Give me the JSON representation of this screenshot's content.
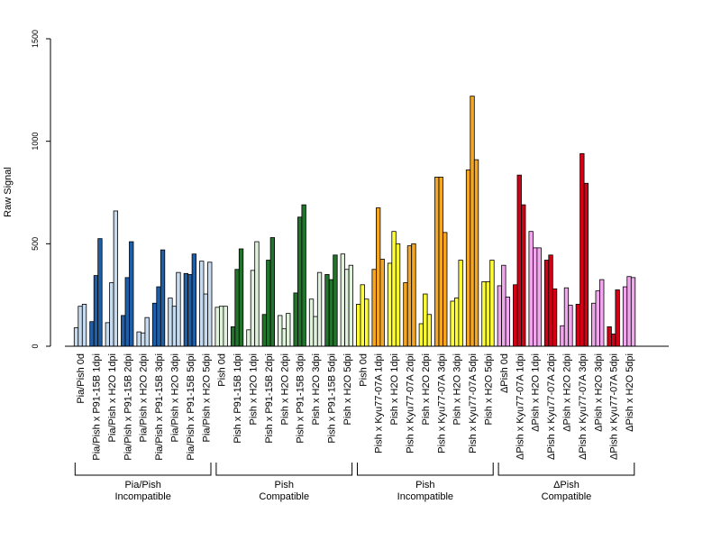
{
  "chart_data": {
    "type": "bar",
    "ylabel": "Raw Signal",
    "ylim": [
      0,
      1500
    ],
    "yticks": [
      0,
      500,
      1000,
      1500
    ],
    "grid": false,
    "categories": [
      "Pia/Pish 0d",
      "Pia/Pish x P91-15B 1dpi",
      "Pia/Pish x H2O 1dpi",
      "Pia/Pish x P91-15B 2dpi",
      "Pia/Pish x H2O 2dpi",
      "Pia/Pish x P91-15B 3dpi",
      "Pia/Pish x H2O 3dpi",
      "Pia/Pish x P91-15B 5dpi",
      "Pia/Pish x H2O 5dpi",
      "Pish 0d",
      "Pish x P91-15B 1dpi",
      "Pish x H2O 1dpi",
      "Pish x P91-15B 2dpi",
      "Pish x H2O 2dpi",
      "Pish x P91-15B 3dpi",
      "Pish x H2O 3dpi",
      "Pish x P91-15B 5dpi",
      "Pish x H2O 5dpi",
      "Pish 0d",
      "Pish x Kyu77-07A 1dpi",
      "Pish x H2O 1dpi",
      "Pish x Kyu77-07A 2dpi",
      "Pish x H2O 2dpi",
      "Pish x Kyu77-07A 3dpi",
      "Pish x H2O 3dpi",
      "Pish x Kyu77-07A 5dpi",
      "Pish x H2O 5dpi",
      "ΔPish 0d",
      "ΔPish x Kyu77-07A 1dpi",
      "ΔPish x H2O 1dpi",
      "ΔPish x Kyu77-07A 2dpi",
      "ΔPish x H2O 2dpi",
      "ΔPish x Kyu77-07A 3dpi",
      "ΔPish x H2O 3dpi",
      "ΔPish x Kyu77-07A 5dpi",
      "ΔPish x H2O 5dpi"
    ],
    "colors": [
      "#c6dbef",
      "#1f5fa8",
      "#c6dbef",
      "#1f5fa8",
      "#c6dbef",
      "#1f5fa8",
      "#c6dbef",
      "#1f5fa8",
      "#c6dbef",
      "#e1f2dc",
      "#22742c",
      "#e1f2dc",
      "#22742c",
      "#e1f2dc",
      "#22742c",
      "#e1f2dc",
      "#22742c",
      "#e1f2dc",
      "#ffff33",
      "#f5a623",
      "#ffff33",
      "#f5a623",
      "#ffff33",
      "#f5a623",
      "#ffff33",
      "#f5a623",
      "#ffff33",
      "#f2a6ee",
      "#d40015",
      "#f2a6ee",
      "#d40015",
      "#f2a6ee",
      "#d40015",
      "#f2a6ee",
      "#d40015",
      "#f2a6ee"
    ],
    "values": [
      [
        90,
        195,
        205
      ],
      [
        120,
        345,
        525
      ],
      [
        115,
        310,
        660
      ],
      [
        150,
        335,
        510
      ],
      [
        70,
        65,
        140
      ],
      [
        210,
        290,
        470
      ],
      [
        235,
        195,
        360
      ],
      [
        355,
        350,
        450
      ],
      [
        415,
        255,
        410
      ],
      [
        190,
        195,
        195
      ],
      [
        95,
        375,
        475
      ],
      [
        80,
        370,
        510
      ],
      [
        155,
        420,
        530
      ],
      [
        150,
        85,
        160
      ],
      [
        260,
        630,
        690
      ],
      [
        230,
        145,
        360
      ],
      [
        350,
        325,
        445
      ],
      [
        450,
        375,
        395
      ],
      [
        205,
        300,
        230
      ],
      [
        375,
        675,
        425
      ],
      [
        405,
        560,
        500
      ],
      [
        310,
        490,
        500
      ],
      [
        110,
        255,
        155
      ],
      [
        825,
        825,
        555
      ],
      [
        220,
        235,
        420
      ],
      [
        860,
        1220,
        910
      ],
      [
        315,
        315,
        420
      ],
      [
        295,
        395,
        240
      ],
      [
        300,
        835,
        690
      ],
      [
        560,
        480,
        480
      ],
      [
        420,
        445,
        280
      ],
      [
        100,
        285,
        200
      ],
      [
        205,
        940,
        795
      ],
      [
        210,
        270,
        325
      ],
      [
        95,
        60,
        275
      ],
      [
        290,
        340,
        335
      ]
    ],
    "groups": [
      {
        "lines": [
          "Pia/Pish",
          "Incompatible"
        ],
        "from": 0,
        "to": 8
      },
      {
        "lines": [
          "Pish",
          "Compatible"
        ],
        "from": 9,
        "to": 17
      },
      {
        "lines": [
          "Pish",
          "Incompatible"
        ],
        "from": 18,
        "to": 26
      },
      {
        "lines": [
          "ΔPish",
          "Compatible"
        ],
        "from": 27,
        "to": 35
      }
    ]
  }
}
